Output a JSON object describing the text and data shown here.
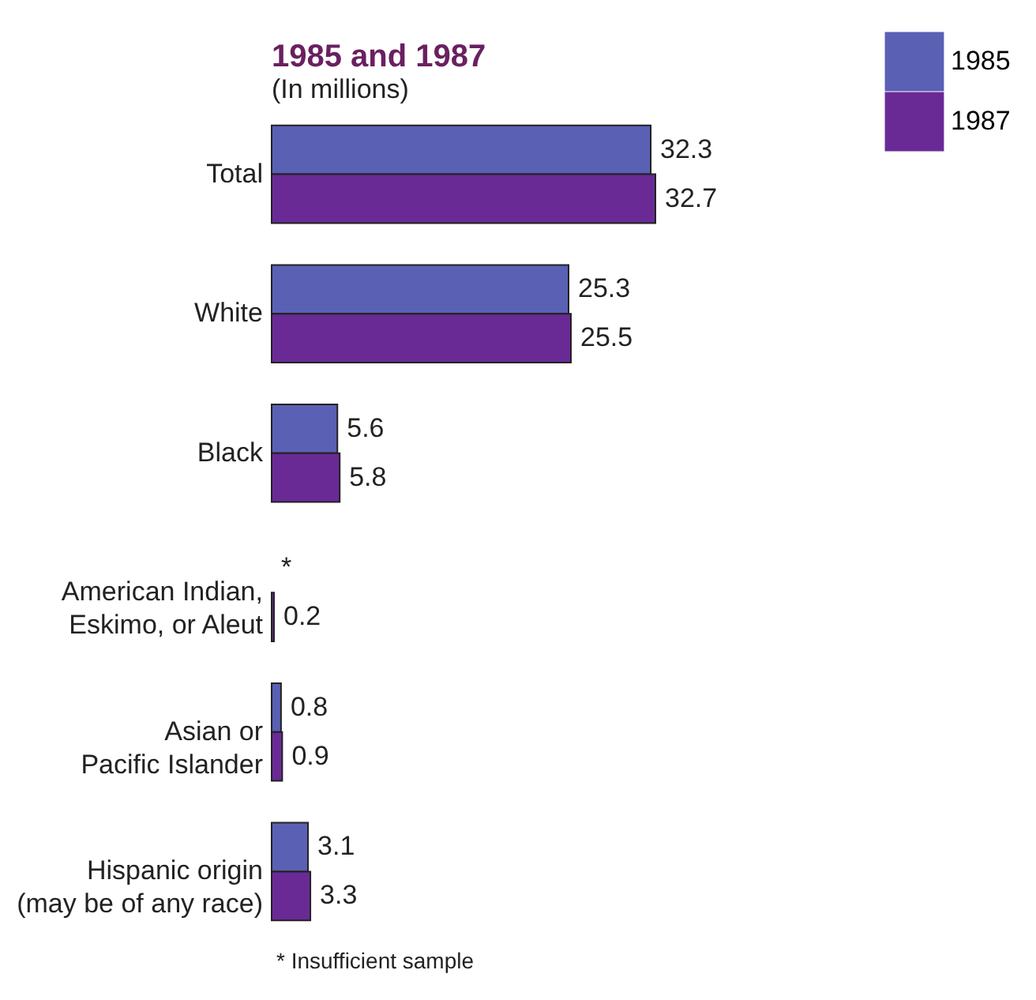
{
  "chart_data": {
    "type": "bar",
    "orientation": "horizontal",
    "title": "1985 and 1987",
    "subtitle": "(In millions)",
    "categories": [
      "Total",
      "White",
      "Black",
      "American Indian,\nEskimo, or Aleut",
      "Asian or\nPacific Islander",
      "Hispanic origin\n(may be of any race)"
    ],
    "series": [
      {
        "name": "1985",
        "color": "#5a60b4",
        "values": [
          32.3,
          25.3,
          5.6,
          null,
          0.8,
          3.1
        ],
        "value_labels": [
          "32.3",
          "25.3",
          "5.6",
          "*",
          "0.8",
          "3.1"
        ]
      },
      {
        "name": "1987",
        "color": "#6a2a96",
        "values": [
          32.7,
          25.5,
          5.8,
          0.2,
          0.9,
          3.3
        ],
        "value_labels": [
          "32.7",
          "25.5",
          "5.8",
          "0.2",
          "0.9",
          "3.3"
        ]
      }
    ],
    "legend": "top right",
    "annotations": [
      "* Insufficient sample"
    ]
  }
}
